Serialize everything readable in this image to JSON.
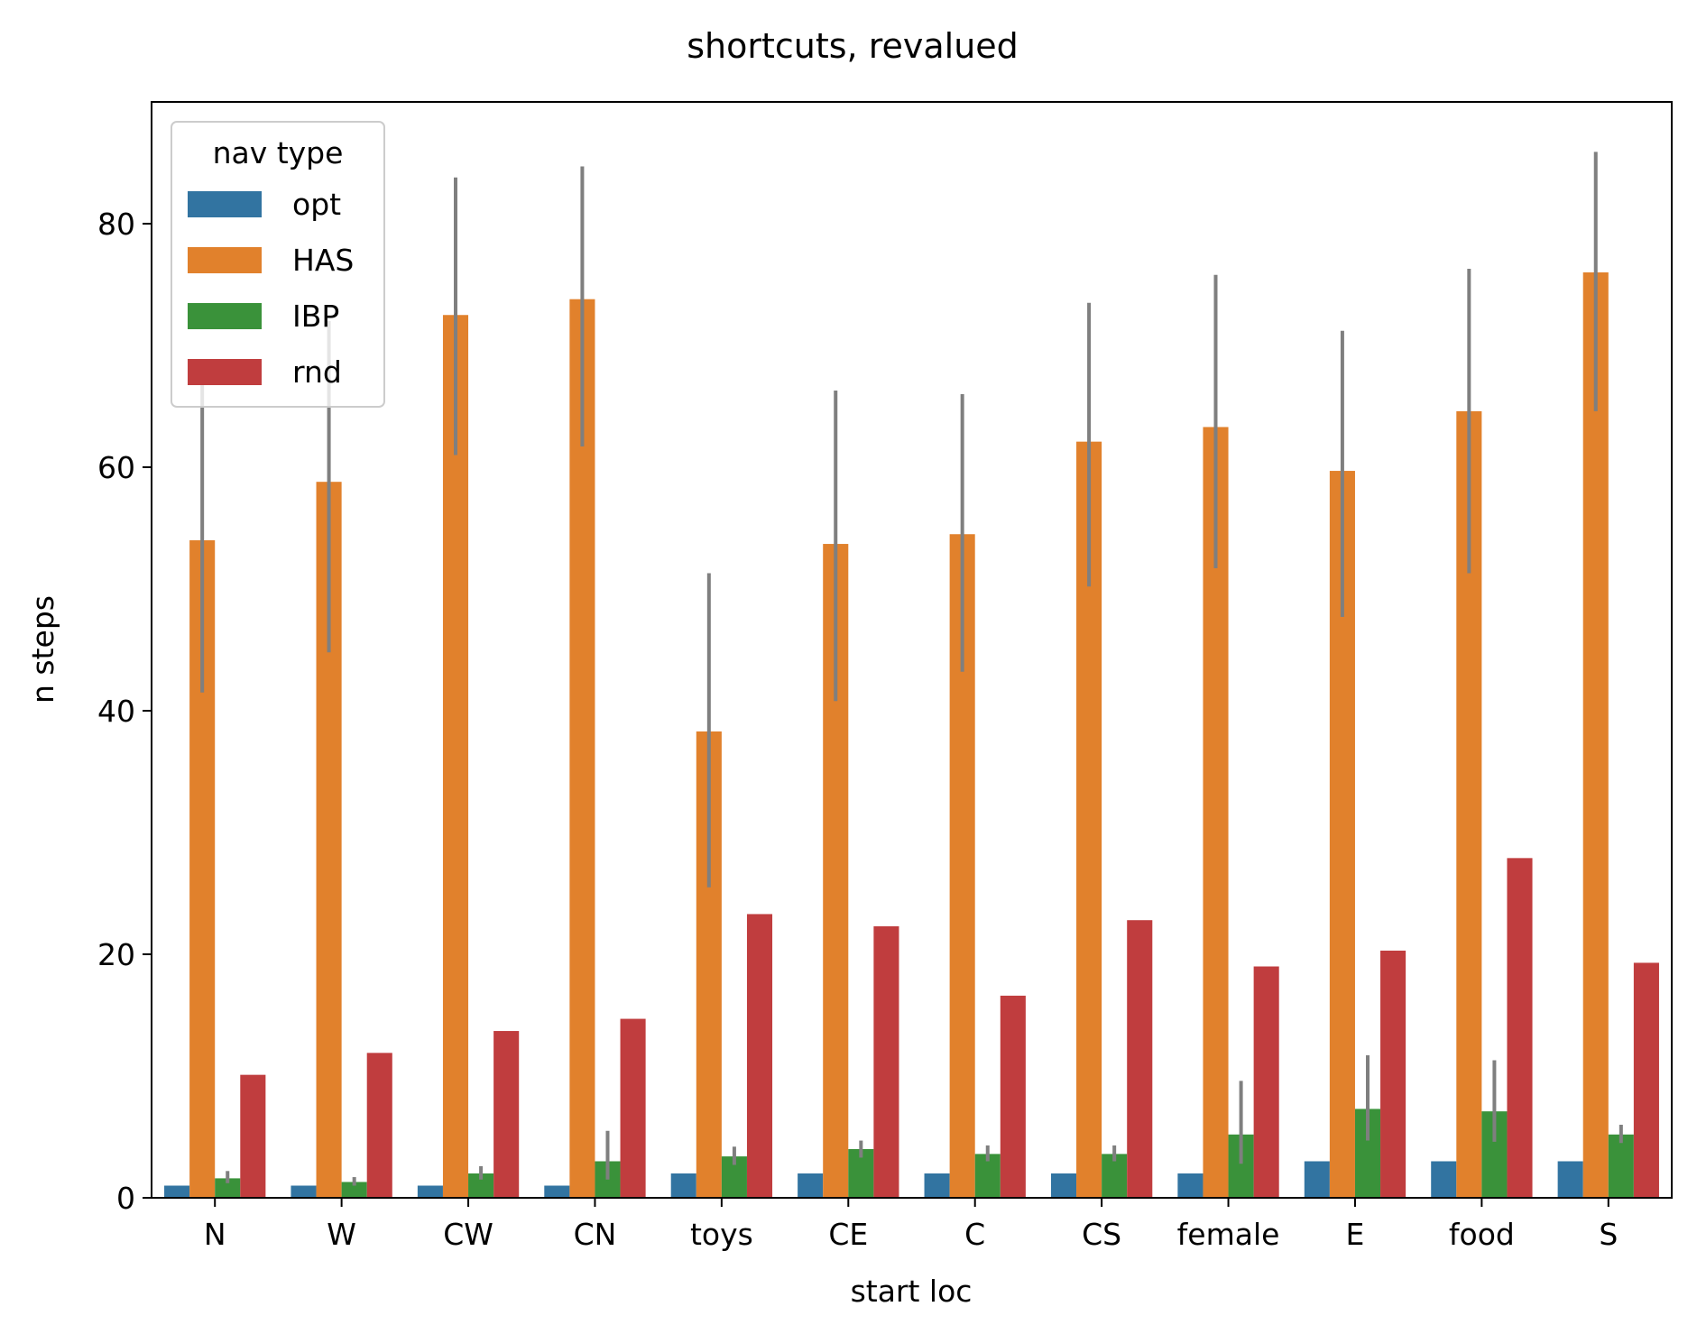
{
  "chart_data": {
    "type": "bar",
    "title": "shortcuts, revalued",
    "xlabel": "start loc",
    "ylabel": "n steps",
    "ylim": [
      0,
      90
    ],
    "yticks": [
      0,
      20,
      40,
      60,
      80
    ],
    "grid": false,
    "legend": {
      "title": "nav type",
      "placement": "top-left"
    },
    "categories": [
      "N",
      "W",
      "CW",
      "CN",
      "toys",
      "CE",
      "C",
      "CS",
      "female",
      "E",
      "food",
      "S"
    ],
    "series": [
      {
        "name": "opt",
        "color": "#3274a1",
        "values": [
          1,
          1,
          1,
          1,
          2,
          2,
          2,
          2,
          2,
          3,
          3,
          3
        ],
        "error": [
          null,
          null,
          null,
          null,
          null,
          null,
          null,
          null,
          null,
          null,
          null,
          null
        ]
      },
      {
        "name": "HAS",
        "color": "#e1812c",
        "values": [
          54,
          58.8,
          72.5,
          73.8,
          38.3,
          53.7,
          54.5,
          62.1,
          63.3,
          59.7,
          64.6,
          76
        ],
        "error": [
          [
            41.5,
            67
          ],
          [
            44.8,
            72
          ],
          [
            61,
            83.8
          ],
          [
            61.7,
            84.7
          ],
          [
            25.5,
            51.3
          ],
          [
            40.8,
            66.3
          ],
          [
            43.2,
            66
          ],
          [
            50.2,
            73.5
          ],
          [
            51.7,
            75.8
          ],
          [
            47.7,
            71.2
          ],
          [
            51.3,
            76.3
          ],
          [
            64.6,
            85.9
          ]
        ]
      },
      {
        "name": "IBP",
        "color": "#3a923a",
        "values": [
          1.6,
          1.3,
          2.0,
          3.0,
          3.4,
          4.0,
          3.6,
          3.6,
          5.2,
          7.3,
          7.1,
          5.2
        ],
        "error": [
          [
            1.2,
            2.2
          ],
          [
            1.0,
            1.7
          ],
          [
            1.5,
            2.6
          ],
          [
            1.5,
            5.5
          ],
          [
            2.7,
            4.2
          ],
          [
            3.3,
            4.7
          ],
          [
            3.0,
            4.3
          ],
          [
            3.0,
            4.3
          ],
          [
            2.8,
            9.6
          ],
          [
            4.7,
            11.7
          ],
          [
            4.6,
            11.3
          ],
          [
            4.5,
            6.0
          ]
        ]
      },
      {
        "name": "rnd",
        "color": "#c03d3e",
        "values": [
          10.1,
          11.9,
          13.7,
          14.7,
          23.3,
          22.3,
          16.6,
          22.8,
          19.0,
          20.3,
          27.9,
          19.3
        ],
        "error": [
          null,
          null,
          null,
          null,
          null,
          null,
          null,
          null,
          null,
          null,
          null,
          null
        ]
      }
    ]
  }
}
